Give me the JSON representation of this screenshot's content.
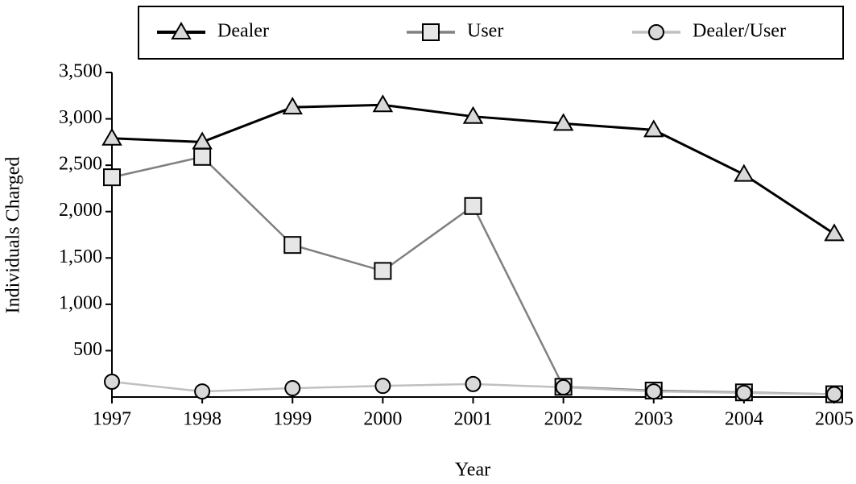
{
  "chart_data": {
    "type": "line",
    "y_label": "Individuals Charged",
    "x_label": "Year",
    "categories": [
      "1997",
      "1998",
      "1999",
      "2000",
      "2001",
      "2002",
      "2003",
      "2004",
      "2005"
    ],
    "series": [
      {
        "name": "Dealer",
        "color": "#000000",
        "marker": "triangle",
        "values": [
          2790,
          2750,
          3125,
          3150,
          3025,
          2950,
          2880,
          2400,
          1760
        ]
      },
      {
        "name": "User",
        "color": "#808080",
        "marker": "square",
        "values": [
          2370,
          2590,
          1640,
          1360,
          2060,
          110,
          70,
          50,
          30
        ]
      },
      {
        "name": "Dealer/User",
        "color": "#c0c0c0",
        "marker": "circle",
        "values": [
          165,
          60,
          95,
          120,
          140,
          105,
          60,
          45,
          30
        ]
      }
    ],
    "ylim": [
      0,
      3500
    ],
    "yticks": [
      500,
      {
        "value": 1000,
        "label": "1,000"
      },
      {
        "value": 1500,
        "label": "1,500"
      },
      {
        "value": 2000,
        "label": "2,000"
      },
      {
        "value": 2500,
        "label": "2,500"
      },
      {
        "value": 3000,
        "label": "3,000"
      },
      {
        "value": 3500,
        "label": "3,500"
      }
    ],
    "legend": "top"
  }
}
